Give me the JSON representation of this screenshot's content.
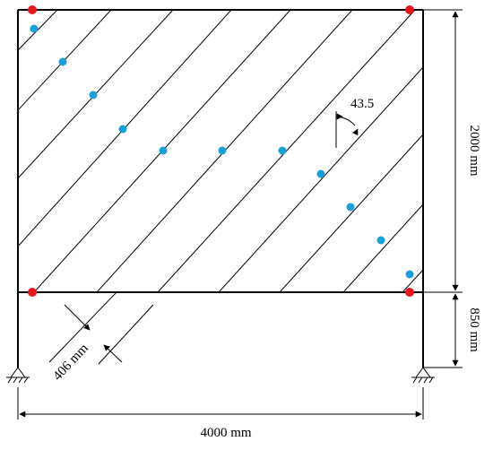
{
  "labels": {
    "angle": "43.5",
    "height_upper": "2000 mm",
    "height_lower": "850 mm",
    "width": "4000 mm",
    "spacing": "406 mm"
  },
  "colors": {
    "frame": "#000000",
    "corner_marker": "#e8141e",
    "point_marker": "#1a9fd9"
  }
}
